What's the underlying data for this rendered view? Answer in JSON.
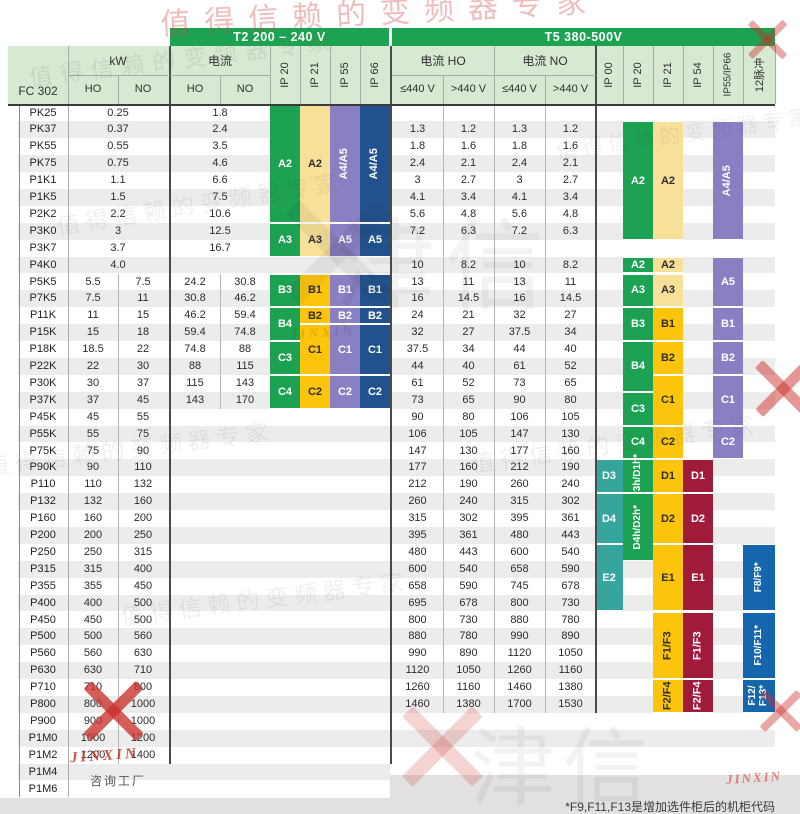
{
  "header": {
    "fc_label": "FC 302",
    "kw_label": "kW",
    "ho": "HO",
    "no": "NO",
    "t2": {
      "title": "T2 200 – 240 V",
      "current_label": "电流",
      "ip_cols": [
        "IP 20",
        "IP 21",
        "IP 55",
        "IP 66"
      ]
    },
    "t5": {
      "title": "T5 380-500V",
      "current_ho_label": "电流 HO",
      "current_no_label": "电流 NO",
      "v_le": "≤440 V",
      "v_gt": ">440 V",
      "ip_cols": [
        "IP 00",
        "IP 20",
        "IP 21",
        "IP 54",
        "IP55/IP66",
        "12脉冲"
      ]
    }
  },
  "rows": [
    {
      "model": "PK25",
      "kw": [
        "0.25"
      ],
      "t2_current": [
        "1.8"
      ],
      "t5_current": []
    },
    {
      "model": "PK37",
      "kw": [
        "0.37"
      ],
      "t2_current": [
        "2.4"
      ],
      "t5_current": [
        "1.3",
        "1.2",
        "1.3",
        "1.2"
      ]
    },
    {
      "model": "PK55",
      "kw": [
        "0.55"
      ],
      "t2_current": [
        "3.5"
      ],
      "t5_current": [
        "1.8",
        "1.6",
        "1.8",
        "1.6"
      ]
    },
    {
      "model": "PK75",
      "kw": [
        "0.75"
      ],
      "t2_current": [
        "4.6"
      ],
      "t5_current": [
        "2.4",
        "2.1",
        "2.4",
        "2.1"
      ]
    },
    {
      "model": "P1K1",
      "kw": [
        "1.1"
      ],
      "t2_current": [
        "6.6"
      ],
      "t5_current": [
        "3",
        "2.7",
        "3",
        "2.7"
      ]
    },
    {
      "model": "P1K5",
      "kw": [
        "1.5"
      ],
      "t2_current": [
        "7.5"
      ],
      "t5_current": [
        "4.1",
        "3.4",
        "4.1",
        "3.4"
      ]
    },
    {
      "model": "P2K2",
      "kw": [
        "2.2"
      ],
      "t2_current": [
        "10.6"
      ],
      "t5_current": [
        "5.6",
        "4.8",
        "5.6",
        "4.8"
      ]
    },
    {
      "model": "P3K0",
      "kw": [
        "3"
      ],
      "t2_current": [
        "12.5"
      ],
      "t5_current": [
        "7.2",
        "6.3",
        "7.2",
        "6.3"
      ]
    },
    {
      "model": "P3K7",
      "kw": [
        "3.7"
      ],
      "t2_current": [
        "16.7"
      ],
      "t5_current": []
    },
    {
      "model": "P4K0",
      "kw": [
        "4.0"
      ],
      "t2_current": [],
      "t5_current": [
        "10",
        "8.2",
        "10",
        "8.2"
      ]
    },
    {
      "model": "P5K5",
      "kw": [
        "5.5",
        "7.5"
      ],
      "t2_current": [
        "24.2",
        "30.8"
      ],
      "t5_current": [
        "13",
        "11",
        "13",
        "11"
      ]
    },
    {
      "model": "P7K5",
      "kw": [
        "7.5",
        "11"
      ],
      "t2_current": [
        "30.8",
        "46.2"
      ],
      "t5_current": [
        "16",
        "14.5",
        "16",
        "14.5"
      ]
    },
    {
      "model": "P11K",
      "kw": [
        "11",
        "15"
      ],
      "t2_current": [
        "46.2",
        "59.4"
      ],
      "t5_current": [
        "24",
        "21",
        "32",
        "27"
      ]
    },
    {
      "model": "P15K",
      "kw": [
        "15",
        "18"
      ],
      "t2_current": [
        "59.4",
        "74.8"
      ],
      "t5_current": [
        "32",
        "27",
        "37.5",
        "34"
      ]
    },
    {
      "model": "P18K",
      "kw": [
        "18.5",
        "22"
      ],
      "t2_current": [
        "74.8",
        "88"
      ],
      "t5_current": [
        "37.5",
        "34",
        "44",
        "40"
      ]
    },
    {
      "model": "P22K",
      "kw": [
        "22",
        "30"
      ],
      "t2_current": [
        "88",
        "115"
      ],
      "t5_current": [
        "44",
        "40",
        "61",
        "52"
      ]
    },
    {
      "model": "P30K",
      "kw": [
        "30",
        "37"
      ],
      "t2_current": [
        "115",
        "143"
      ],
      "t5_current": [
        "61",
        "52",
        "73",
        "65"
      ]
    },
    {
      "model": "P37K",
      "kw": [
        "37",
        "45"
      ],
      "t2_current": [
        "143",
        "170"
      ],
      "t5_current": [
        "73",
        "65",
        "90",
        "80"
      ]
    },
    {
      "model": "P45K",
      "kw": [
        "45",
        "55"
      ],
      "t2_current": [],
      "t5_current": [
        "90",
        "80",
        "106",
        "105"
      ]
    },
    {
      "model": "P55K",
      "kw": [
        "55",
        "75"
      ],
      "t2_current": [],
      "t5_current": [
        "106",
        "105",
        "147",
        "130"
      ]
    },
    {
      "model": "P75K",
      "kw": [
        "75",
        "90"
      ],
      "t2_current": [],
      "t5_current": [
        "147",
        "130",
        "177",
        "160"
      ]
    },
    {
      "model": "P90K",
      "kw": [
        "90",
        "110"
      ],
      "t2_current": [],
      "t5_current": [
        "177",
        "160",
        "212",
        "190"
      ]
    },
    {
      "model": "P110",
      "kw": [
        "110",
        "132"
      ],
      "t2_current": [],
      "t5_current": [
        "212",
        "190",
        "260",
        "240"
      ]
    },
    {
      "model": "P132",
      "kw": [
        "132",
        "160"
      ],
      "t2_current": [],
      "t5_current": [
        "260",
        "240",
        "315",
        "302"
      ]
    },
    {
      "model": "P160",
      "kw": [
        "160",
        "200"
      ],
      "t2_current": [],
      "t5_current": [
        "315",
        "302",
        "395",
        "361"
      ]
    },
    {
      "model": "P200",
      "kw": [
        "200",
        "250"
      ],
      "t2_current": [],
      "t5_current": [
        "395",
        "361",
        "480",
        "443"
      ]
    },
    {
      "model": "P250",
      "kw": [
        "250",
        "315"
      ],
      "t2_current": [],
      "t5_current": [
        "480",
        "443",
        "600",
        "540"
      ]
    },
    {
      "model": "P315",
      "kw": [
        "315",
        "400"
      ],
      "t2_current": [],
      "t5_current": [
        "600",
        "540",
        "658",
        "590"
      ]
    },
    {
      "model": "P355",
      "kw": [
        "355",
        "450"
      ],
      "t2_current": [],
      "t5_current": [
        "658",
        "590",
        "745",
        "678"
      ]
    },
    {
      "model": "P400",
      "kw": [
        "400",
        "500"
      ],
      "t2_current": [],
      "t5_current": [
        "695",
        "678",
        "800",
        "730"
      ]
    },
    {
      "model": "P450",
      "kw": [
        "450",
        "500"
      ],
      "t2_current": [],
      "t5_current": [
        "800",
        "730",
        "880",
        "780"
      ]
    },
    {
      "model": "P500",
      "kw": [
        "500",
        "560"
      ],
      "t2_current": [],
      "t5_current": [
        "880",
        "780",
        "990",
        "890"
      ]
    },
    {
      "model": "P560",
      "kw": [
        "560",
        "630"
      ],
      "t2_current": [],
      "t5_current": [
        "990",
        "890",
        "1120",
        "1050"
      ]
    },
    {
      "model": "P630",
      "kw": [
        "630",
        "710"
      ],
      "t2_current": [],
      "t5_current": [
        "1120",
        "1050",
        "1260",
        "1160"
      ]
    },
    {
      "model": "P710",
      "kw": [
        "710",
        "800"
      ],
      "t2_current": [],
      "t5_current": [
        "1260",
        "1160",
        "1460",
        "1380"
      ]
    },
    {
      "model": "P800",
      "kw": [
        "800",
        "1000"
      ],
      "t2_current": [],
      "t5_current": [
        "1460",
        "1380",
        "1700",
        "1530"
      ]
    },
    {
      "model": "P900",
      "kw": [
        "900",
        "1000"
      ],
      "t2_current": [],
      "t5_current": []
    },
    {
      "model": "P1M0",
      "kw": [
        "1000",
        "1200"
      ],
      "t2_current": [],
      "t5_current": []
    },
    {
      "model": "P1M2",
      "kw": [
        "1200",
        "1400"
      ],
      "t2_current": [],
      "t5_current": []
    },
    {
      "model": "P1M4",
      "kw": [],
      "t2_current": [],
      "t5_current": []
    },
    {
      "model": "P1M6",
      "kw": [],
      "t2_current": [],
      "t5_current": []
    }
  ],
  "frame_blocks": [
    {
      "col": "t2ip20",
      "rows": [
        0,
        6
      ],
      "label": "A2",
      "color": "green"
    },
    {
      "col": "t2ip21",
      "rows": [
        0,
        6
      ],
      "label": "A2",
      "color": "pale_yellow"
    },
    {
      "col": "t2ip55",
      "rows": [
        0,
        6
      ],
      "label": "A4/A5",
      "color": "purple",
      "rot": true
    },
    {
      "col": "t2ip66",
      "rows": [
        0,
        6
      ],
      "label": "A4/A5",
      "color": "navy",
      "rot": true
    },
    {
      "col": "t2ip20",
      "rows": [
        7,
        8
      ],
      "label": "A3",
      "color": "green"
    },
    {
      "col": "t2ip21",
      "rows": [
        7,
        8
      ],
      "label": "A3",
      "color": "pale_yellow"
    },
    {
      "col": "t2ip55",
      "rows": [
        7,
        8
      ],
      "label": "A5",
      "color": "purple"
    },
    {
      "col": "t2ip66",
      "rows": [
        7,
        8
      ],
      "label": "A5",
      "color": "navy"
    },
    {
      "col": "t2ip20",
      "rows": [
        10,
        11
      ],
      "label": "B3",
      "color": "green"
    },
    {
      "col": "t2ip21",
      "rows": [
        10,
        11
      ],
      "label": "B1",
      "color": "gold"
    },
    {
      "col": "t2ip55",
      "rows": [
        10,
        11
      ],
      "label": "B1",
      "color": "purple"
    },
    {
      "col": "t2ip66",
      "rows": [
        10,
        11
      ],
      "label": "B1",
      "color": "navy"
    },
    {
      "col": "t2ip20",
      "rows": [
        12,
        13
      ],
      "label": "B4",
      "color": "green"
    },
    {
      "col": "t2ip21",
      "rows": [
        12,
        12
      ],
      "label": "B2",
      "color": "gold"
    },
    {
      "col": "t2ip55",
      "rows": [
        12,
        12
      ],
      "label": "B2",
      "color": "purple"
    },
    {
      "col": "t2ip66",
      "rows": [
        12,
        12
      ],
      "label": "B2",
      "color": "navy"
    },
    {
      "col": "t2ip20",
      "rows": [
        14,
        15
      ],
      "label": "C3",
      "color": "green"
    },
    {
      "col": "t2ip21",
      "rows": [
        13,
        15
      ],
      "label": "C1",
      "color": "gold"
    },
    {
      "col": "t2ip55",
      "rows": [
        13,
        15
      ],
      "label": "C1",
      "color": "purple"
    },
    {
      "col": "t2ip66",
      "rows": [
        13,
        15
      ],
      "label": "C1",
      "color": "navy"
    },
    {
      "col": "t2ip20",
      "rows": [
        16,
        17
      ],
      "label": "C4",
      "color": "green"
    },
    {
      "col": "t2ip21",
      "rows": [
        16,
        17
      ],
      "label": "C2",
      "color": "gold"
    },
    {
      "col": "t2ip55",
      "rows": [
        16,
        17
      ],
      "label": "C2",
      "color": "purple"
    },
    {
      "col": "t2ip66",
      "rows": [
        16,
        17
      ],
      "label": "C2",
      "color": "navy"
    },
    {
      "col": "t5ip20",
      "rows": [
        1,
        7
      ],
      "label": "A2",
      "color": "green"
    },
    {
      "col": "t5ip21",
      "rows": [
        1,
        7
      ],
      "label": "A2",
      "color": "pale_yellow"
    },
    {
      "col": "t5ip5566",
      "rows": [
        1,
        7
      ],
      "label": "A4/A5",
      "color": "purple",
      "rot": true
    },
    {
      "col": "t5ip20",
      "rows": [
        9,
        9
      ],
      "label": "A2",
      "color": "green"
    },
    {
      "col": "t5ip21",
      "rows": [
        9,
        9
      ],
      "label": "A2",
      "color": "pale_yellow"
    },
    {
      "col": "t5ip5566",
      "rows": [
        9,
        11
      ],
      "label": "A5",
      "color": "purple"
    },
    {
      "col": "t5ip20",
      "rows": [
        10,
        11
      ],
      "label": "A3",
      "color": "green"
    },
    {
      "col": "t5ip21",
      "rows": [
        10,
        11
      ],
      "label": "A3",
      "color": "pale_yellow"
    },
    {
      "col": "t5ip20",
      "rows": [
        12,
        13
      ],
      "label": "B3",
      "color": "green"
    },
    {
      "col": "t5ip21",
      "rows": [
        12,
        13
      ],
      "label": "B1",
      "color": "gold"
    },
    {
      "col": "t5ip5566",
      "rows": [
        12,
        13
      ],
      "label": "B1",
      "color": "purple"
    },
    {
      "col": "t5ip20",
      "rows": [
        14,
        16
      ],
      "label": "B4",
      "color": "green"
    },
    {
      "col": "t5ip21",
      "rows": [
        14,
        15
      ],
      "label": "B2",
      "color": "gold"
    },
    {
      "col": "t5ip5566",
      "rows": [
        14,
        15
      ],
      "label": "B2",
      "color": "purple"
    },
    {
      "col": "t5ip21",
      "rows": [
        16,
        18
      ],
      "label": "C1",
      "color": "gold"
    },
    {
      "col": "t5ip5566",
      "rows": [
        16,
        18
      ],
      "label": "C1",
      "color": "purple"
    },
    {
      "col": "t5ip20",
      "rows": [
        17,
        18
      ],
      "label": "C3",
      "color": "green"
    },
    {
      "col": "t5ip20",
      "rows": [
        19,
        20
      ],
      "label": "C4",
      "color": "green"
    },
    {
      "col": "t5ip21",
      "rows": [
        19,
        20
      ],
      "label": "C2",
      "color": "gold"
    },
    {
      "col": "t5ip5566",
      "rows": [
        19,
        20
      ],
      "label": "C2",
      "color": "purple"
    },
    {
      "col": "t5ip00",
      "rows": [
        21,
        22
      ],
      "label": "D3",
      "color": "teal"
    },
    {
      "col": "t5ip20",
      "rows": [
        21,
        22
      ],
      "label": "D3h/D1h*",
      "color": "green",
      "rot": true
    },
    {
      "col": "t5ip21",
      "rows": [
        21,
        22
      ],
      "label": "D1",
      "color": "gold"
    },
    {
      "col": "t5ip54",
      "rows": [
        21,
        22
      ],
      "label": "D1",
      "color": "crimson"
    },
    {
      "col": "t5ip00",
      "rows": [
        23,
        25
      ],
      "label": "D4",
      "color": "teal"
    },
    {
      "col": "t5ip20",
      "rows": [
        23,
        26
      ],
      "label": "D4h/D2h*",
      "color": "green",
      "rot": true
    },
    {
      "col": "t5ip21",
      "rows": [
        23,
        25
      ],
      "label": "D2",
      "color": "gold"
    },
    {
      "col": "t5ip54",
      "rows": [
        23,
        25
      ],
      "label": "D2",
      "color": "crimson"
    },
    {
      "col": "t5ip00",
      "rows": [
        26,
        29
      ],
      "label": "E2",
      "color": "teal"
    },
    {
      "col": "t5ip21",
      "rows": [
        26,
        29
      ],
      "label": "E1",
      "color": "gold"
    },
    {
      "col": "t5ip54",
      "rows": [
        26,
        29
      ],
      "label": "E1",
      "color": "crimson"
    },
    {
      "col": "t5p12",
      "rows": [
        26,
        29
      ],
      "label": "F8/F9*",
      "color": "blue",
      "rot": true
    },
    {
      "col": "t5ip21",
      "rows": [
        30,
        33
      ],
      "label": "F1/F3",
      "color": "gold",
      "rot": true
    },
    {
      "col": "t5ip54",
      "rows": [
        30,
        33
      ],
      "label": "F1/F3",
      "color": "crimson",
      "rot": true
    },
    {
      "col": "t5p12",
      "rows": [
        30,
        33
      ],
      "label": "F10/F11*",
      "color": "blue",
      "rot": true
    },
    {
      "col": "t5ip21",
      "rows": [
        34,
        35
      ],
      "label": "F2/F4",
      "color": "gold",
      "rot": true
    },
    {
      "col": "t5ip54",
      "rows": [
        34,
        35
      ],
      "label": "F2/F4",
      "color": "crimson",
      "rot": true
    },
    {
      "col": "t5p12",
      "rows": [
        34,
        35
      ],
      "label": "F12/\nF13*",
      "color": "blue",
      "rot": true
    }
  ],
  "colors": {
    "green": "#1da152",
    "pale_yellow": "#f7e098",
    "gold": "#fcc50b",
    "purple": "#8a7fc3",
    "navy": "#21528d",
    "teal": "#36a59d",
    "crimson": "#a01b3a",
    "blue": "#1566ac",
    "band_green": "#1ba351",
    "header_bg": "#d8e9d3",
    "stripe": "#ececec"
  },
  "page": {
    "consult_factory": "咨询工厂",
    "footnote": "*F9,F11,F13是增加选件柜后的机柜代码"
  },
  "watermarks": {
    "script": "值得信赖的变频器专家",
    "brand": "津信",
    "brand_latin": "JINXIN"
  }
}
